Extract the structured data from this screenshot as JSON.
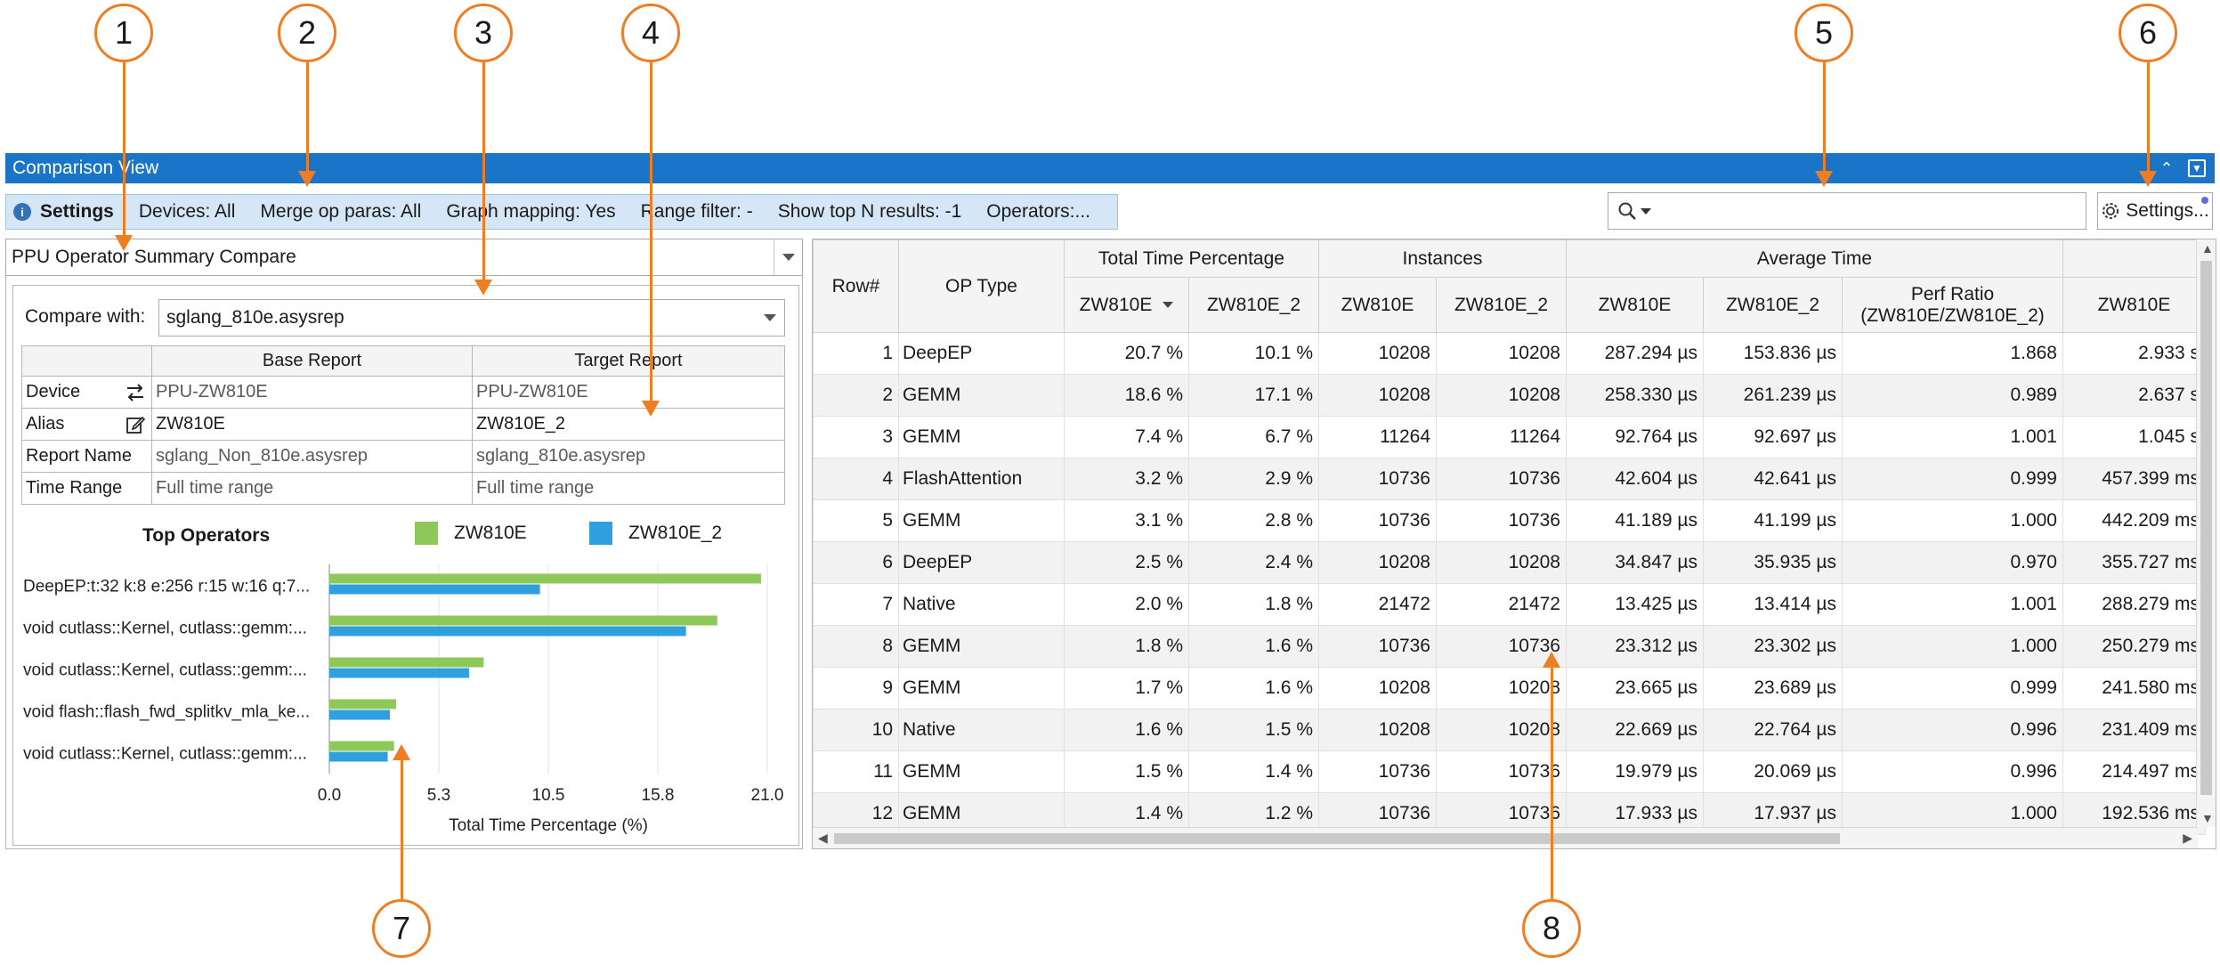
{
  "callouts": [
    "1",
    "2",
    "3",
    "4",
    "5",
    "6",
    "7",
    "8"
  ],
  "window": {
    "title": "Comparison View"
  },
  "settings_strip": {
    "label": "Settings",
    "items": [
      "Devices: All",
      "Merge op paras: All",
      "Graph mapping: Yes",
      "Range filter: -",
      "Show top N results: -1",
      "Operators:..."
    ]
  },
  "search": {
    "value": ""
  },
  "settings_button": {
    "label": "Settings..."
  },
  "left": {
    "summary_select": "PPU Operator Summary Compare",
    "compare_label": "Compare with:",
    "compare_value": "sglang_810e.asysrep",
    "info_table": {
      "headers": [
        "",
        "Base Report",
        "Target Report"
      ],
      "rows": [
        {
          "key": "Device",
          "base": "PPU-ZW810E",
          "target": "PPU-ZW810E"
        },
        {
          "key": "Alias",
          "base": "ZW810E",
          "target": "ZW810E_2"
        },
        {
          "key": "Report Name",
          "base": "sglang_Non_810e.asysrep",
          "target": "sglang_810e.asysrep"
        },
        {
          "key": "Time Range",
          "base": "Full time range",
          "target": "Full time range"
        }
      ]
    }
  },
  "chart_data": {
    "type": "bar",
    "orientation": "horizontal",
    "title": "Top Operators",
    "xlabel": "Total Time Percentage (%)",
    "ylabel": "",
    "xlim": [
      0,
      21.0
    ],
    "xticks": [
      "0.0",
      "5.3",
      "10.5",
      "15.8",
      "21.0"
    ],
    "categories": [
      "DeepEP:t:32 k:8 e:256 r:15 w:16 q:7...",
      "void cutlass::Kernel, cutlass::gemm:...",
      "void cutlass::Kernel, cutlass::gemm:...",
      "void flash::flash_fwd_splitkv_mla_ke...",
      "void cutlass::Kernel, cutlass::gemm:..."
    ],
    "series": [
      {
        "name": "ZW810E",
        "color": "#8dc859",
        "values": [
          20.7,
          18.6,
          7.4,
          3.2,
          3.1
        ]
      },
      {
        "name": "ZW810E_2",
        "color": "#2f9fe0",
        "values": [
          10.1,
          17.1,
          6.7,
          2.9,
          2.8
        ]
      }
    ],
    "legend": "top"
  },
  "grid": {
    "group_headers": {
      "row": "Row#",
      "op_type": "OP Type",
      "total_time": "Total Time Percentage",
      "instances": "Instances",
      "average_time": "Average Time"
    },
    "sub_headers": {
      "total_a": "ZW810E",
      "total_b": "ZW810E_2",
      "inst_a": "ZW810E",
      "inst_b": "ZW810E_2",
      "avg_a": "ZW810E",
      "avg_b": "ZW810E_2",
      "ratio_line1": "Perf Ratio",
      "ratio_line2": "(ZW810E/ZW810E_2)",
      "extra": "ZW810E"
    },
    "rows": [
      {
        "row": "1",
        "op": "DeepEP",
        "ta": "20.7 %",
        "tb": "10.1 %",
        "ia": "10208",
        "ib": "10208",
        "aa": "287.294 µs",
        "ab": "153.836 µs",
        "ratio": "1.868",
        "extra": "2.933 s"
      },
      {
        "row": "2",
        "op": "GEMM",
        "ta": "18.6 %",
        "tb": "17.1 %",
        "ia": "10208",
        "ib": "10208",
        "aa": "258.330 µs",
        "ab": "261.239 µs",
        "ratio": "0.989",
        "extra": "2.637 s"
      },
      {
        "row": "3",
        "op": "GEMM",
        "ta": "7.4 %",
        "tb": "6.7 %",
        "ia": "11264",
        "ib": "11264",
        "aa": "92.764 µs",
        "ab": "92.697 µs",
        "ratio": "1.001",
        "extra": "1.045 s"
      },
      {
        "row": "4",
        "op": "FlashAttention",
        "ta": "3.2 %",
        "tb": "2.9 %",
        "ia": "10736",
        "ib": "10736",
        "aa": "42.604 µs",
        "ab": "42.641 µs",
        "ratio": "0.999",
        "extra": "457.399 ms"
      },
      {
        "row": "5",
        "op": "GEMM",
        "ta": "3.1 %",
        "tb": "2.8 %",
        "ia": "10736",
        "ib": "10736",
        "aa": "41.189 µs",
        "ab": "41.199 µs",
        "ratio": "1.000",
        "extra": "442.209 ms"
      },
      {
        "row": "6",
        "op": "DeepEP",
        "ta": "2.5 %",
        "tb": "2.4 %",
        "ia": "10208",
        "ib": "10208",
        "aa": "34.847 µs",
        "ab": "35.935 µs",
        "ratio": "0.970",
        "extra": "355.727 ms"
      },
      {
        "row": "7",
        "op": "Native",
        "ta": "2.0 %",
        "tb": "1.8 %",
        "ia": "21472",
        "ib": "21472",
        "aa": "13.425 µs",
        "ab": "13.414 µs",
        "ratio": "1.001",
        "extra": "288.279 ms"
      },
      {
        "row": "8",
        "op": "GEMM",
        "ta": "1.8 %",
        "tb": "1.6 %",
        "ia": "10736",
        "ib": "10736",
        "aa": "23.312 µs",
        "ab": "23.302 µs",
        "ratio": "1.000",
        "extra": "250.279 ms"
      },
      {
        "row": "9",
        "op": "GEMM",
        "ta": "1.7 %",
        "tb": "1.6 %",
        "ia": "10208",
        "ib": "10208",
        "aa": "23.665 µs",
        "ab": "23.689 µs",
        "ratio": "0.999",
        "extra": "241.580 ms"
      },
      {
        "row": "10",
        "op": "Native",
        "ta": "1.6 %",
        "tb": "1.5 %",
        "ia": "10208",
        "ib": "10208",
        "aa": "22.669 µs",
        "ab": "22.764 µs",
        "ratio": "0.996",
        "extra": "231.409 ms"
      },
      {
        "row": "11",
        "op": "GEMM",
        "ta": "1.5 %",
        "tb": "1.4 %",
        "ia": "10736",
        "ib": "10736",
        "aa": "19.979 µs",
        "ab": "20.069 µs",
        "ratio": "0.996",
        "extra": "214.497 ms"
      },
      {
        "row": "12",
        "op": "GEMM",
        "ta": "1.4 %",
        "tb": "1.2 %",
        "ia": "10736",
        "ib": "10736",
        "aa": "17.933 µs",
        "ab": "17.937 µs",
        "ratio": "1.000",
        "extra": "192.536 ms"
      }
    ]
  }
}
